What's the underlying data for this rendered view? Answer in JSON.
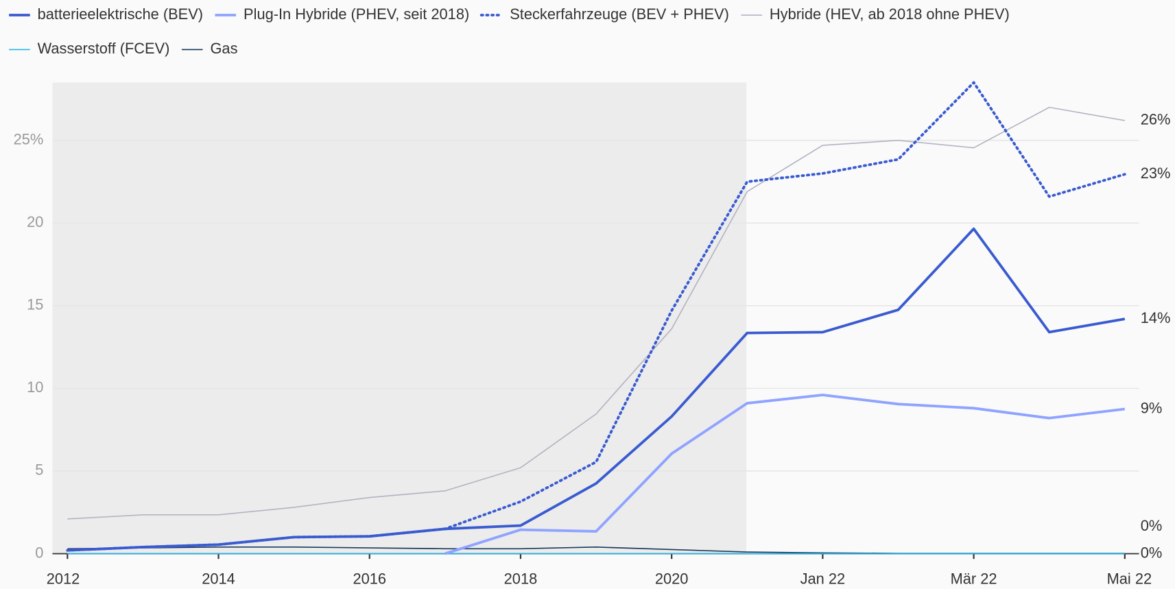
{
  "chart_data": {
    "type": "line",
    "categories": [
      "2012",
      null,
      "2014",
      null,
      "2016",
      null,
      "2018",
      null,
      "2020",
      null,
      "Jan 22",
      null,
      "Mär 22",
      null,
      "Mai 22"
    ],
    "series": [
      {
        "name": "batterieelektrische (BEV)",
        "color": "#3a5bd0",
        "style": "thick",
        "values": [
          0.2,
          0.4,
          0.55,
          1.0,
          1.05,
          1.5,
          1.7,
          4.25,
          8.3,
          13.35,
          13.4,
          14.75,
          19.65,
          13.4,
          14.2
        ],
        "value_labels": [
          null,
          null,
          null,
          null,
          null,
          null,
          null,
          null,
          null,
          null,
          null,
          null,
          null,
          null,
          "14%"
        ]
      },
      {
        "name": "Plug-In Hybride (PHEV, seit 2018)",
        "color": "#8fa3ff",
        "style": "thick",
        "values": [
          null,
          null,
          null,
          null,
          null,
          0,
          1.45,
          1.35,
          6.05,
          9.1,
          9.6,
          9.05,
          8.8,
          8.2,
          8.75
        ],
        "value_labels": [
          null,
          null,
          null,
          null,
          null,
          null,
          null,
          null,
          null,
          null,
          null,
          null,
          null,
          null,
          "9%"
        ]
      },
      {
        "name": "Steckerfahrzeuge (BEV + PHEV)",
        "color": "#3a5bd0",
        "style": "dotted",
        "values": [
          0.2,
          0.4,
          0.55,
          1.0,
          1.05,
          1.5,
          3.15,
          5.55,
          14.7,
          22.5,
          23.0,
          23.85,
          28.5,
          21.6,
          22.95
        ],
        "value_labels": [
          null,
          null,
          null,
          null,
          null,
          null,
          null,
          null,
          null,
          null,
          null,
          null,
          null,
          null,
          "23%"
        ]
      },
      {
        "name": "Hybride (HEV, ab 2018 ohne PHEV)",
        "color": "#b3b3c4",
        "style": "thin",
        "values": [
          2.1,
          2.35,
          2.35,
          2.8,
          3.4,
          3.8,
          5.2,
          8.45,
          13.6,
          21.9,
          24.7,
          25.0,
          24.55,
          27.0,
          26.2
        ],
        "value_labels": [
          null,
          null,
          null,
          null,
          null,
          null,
          null,
          null,
          null,
          null,
          null,
          null,
          null,
          null,
          "26%"
        ]
      },
      {
        "name": "Wasserstoff (FCEV)",
        "color": "#29b6e8",
        "style": "thin",
        "values": [
          0,
          0,
          0,
          0,
          0,
          0,
          0,
          0,
          0,
          0,
          0,
          0,
          0,
          0,
          0
        ],
        "value_labels": [
          null,
          null,
          null,
          null,
          null,
          null,
          null,
          null,
          null,
          null,
          null,
          null,
          null,
          null,
          "0%"
        ]
      },
      {
        "name": "Gas",
        "color": "#1b3a5c",
        "style": "thin",
        "values": [
          0.3,
          0.35,
          0.4,
          0.4,
          0.35,
          0.3,
          0.3,
          0.4,
          0.25,
          0.1,
          0.05,
          0.02,
          0.02,
          0.02,
          0.02
        ],
        "value_labels": [
          null,
          null,
          null,
          null,
          null,
          null,
          null,
          null,
          null,
          null,
          null,
          null,
          null,
          null,
          "0%"
        ]
      }
    ],
    "ylim": [
      0,
      28.5
    ],
    "yticks": [
      0,
      5,
      10,
      15,
      20,
      {
        "value": 25,
        "label": "25%"
      }
    ],
    "grid": true
  }
}
